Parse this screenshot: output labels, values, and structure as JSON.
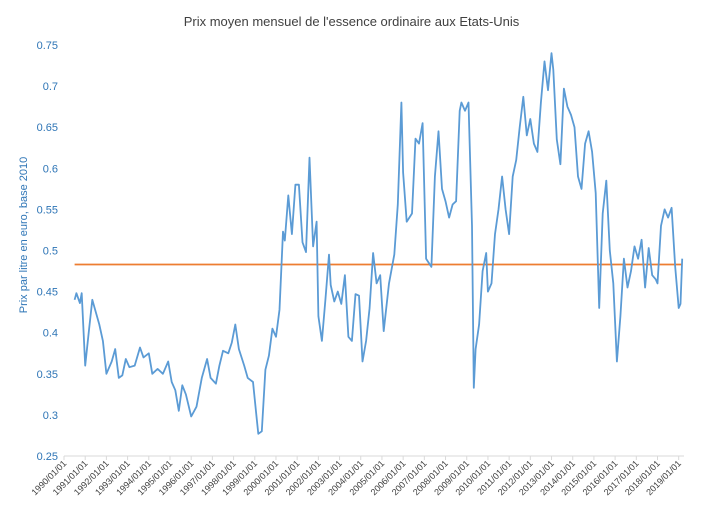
{
  "chart_data": {
    "type": "line",
    "title": "Prix moyen mensuel de l'essence ordinaire aux Etats-Unis",
    "xlabel": "",
    "ylabel": "Prix par litre en euro, base 2010",
    "ylim": [
      0.25,
      0.75
    ],
    "y_ticks": [
      "0.25",
      "0.3",
      "0.35",
      "0.4",
      "0.45",
      "0.5",
      "0.55",
      "0.6",
      "0.65",
      "0.7",
      "0.75"
    ],
    "x_ticks": [
      "1990/01/01",
      "1991/01/01",
      "1992/01/01",
      "1993/01/01",
      "1994/01/01",
      "1995/01/01",
      "1996/01/01",
      "1997/01/01",
      "1998/01/01",
      "1999/01/01",
      "2000/01/01",
      "2001/01/01",
      "2002/01/01",
      "2003/01/01",
      "2004/01/01",
      "2005/01/01",
      "2006/01/01",
      "2007/01/01",
      "2008/01/01",
      "2009/01/01",
      "2010/01/01",
      "2011/01/01",
      "2012/01/01",
      "2013/01/01",
      "2014/01/01",
      "2015/01/01",
      "2016/01/01",
      "2017/01/01",
      "2018/01/01",
      "2019/01/01"
    ],
    "grid": false,
    "legend": "none",
    "series": [
      {
        "color": "#5b9bd5",
        "points": [
          [
            "1990-07",
            0.44
          ],
          [
            "1990-08",
            0.448
          ],
          [
            "1990-10",
            0.436
          ],
          [
            "1990-11",
            0.448
          ],
          [
            "1991-01",
            0.36
          ],
          [
            "1991-03",
            0.4
          ],
          [
            "1991-05",
            0.44
          ],
          [
            "1991-07",
            0.425
          ],
          [
            "1991-09",
            0.41
          ],
          [
            "1991-11",
            0.39
          ],
          [
            "1992-01",
            0.35
          ],
          [
            "1992-04",
            0.365
          ],
          [
            "1992-06",
            0.38
          ],
          [
            "1992-08",
            0.345
          ],
          [
            "1992-10",
            0.348
          ],
          [
            "1992-12",
            0.368
          ],
          [
            "1993-02",
            0.358
          ],
          [
            "1993-05",
            0.36
          ],
          [
            "1993-08",
            0.382
          ],
          [
            "1993-10",
            0.37
          ],
          [
            "1994-01",
            0.375
          ],
          [
            "1994-03",
            0.35
          ],
          [
            "1994-06",
            0.356
          ],
          [
            "1994-09",
            0.35
          ],
          [
            "1994-12",
            0.365
          ],
          [
            "1995-02",
            0.34
          ],
          [
            "1995-04",
            0.33
          ],
          [
            "1995-06",
            0.305
          ],
          [
            "1995-08",
            0.336
          ],
          [
            "1995-10",
            0.325
          ],
          [
            "1996-01",
            0.298
          ],
          [
            "1996-04",
            0.31
          ],
          [
            "1996-07",
            0.345
          ],
          [
            "1996-10",
            0.368
          ],
          [
            "1996-12",
            0.345
          ],
          [
            "1997-03",
            0.338
          ],
          [
            "1997-05",
            0.36
          ],
          [
            "1997-07",
            0.378
          ],
          [
            "1997-10",
            0.375
          ],
          [
            "1997-12",
            0.388
          ],
          [
            "1998-02",
            0.41
          ],
          [
            "1998-04",
            0.38
          ],
          [
            "1998-07",
            0.36
          ],
          [
            "1998-09",
            0.345
          ],
          [
            "1998-12",
            0.34
          ],
          [
            "1999-02",
            0.298
          ],
          [
            "1999-03",
            0.277
          ],
          [
            "1999-05",
            0.28
          ],
          [
            "1999-07",
            0.355
          ],
          [
            "1999-09",
            0.372
          ],
          [
            "1999-11",
            0.405
          ],
          [
            "2000-01",
            0.395
          ],
          [
            "2000-03",
            0.428
          ],
          [
            "2000-05",
            0.523
          ],
          [
            "2000-06",
            0.512
          ],
          [
            "2000-08",
            0.567
          ],
          [
            "2000-10",
            0.52
          ],
          [
            "2000-12",
            0.58
          ],
          [
            "2001-02",
            0.58
          ],
          [
            "2001-04",
            0.51
          ],
          [
            "2001-06",
            0.498
          ],
          [
            "2001-08",
            0.613
          ],
          [
            "2001-10",
            0.505
          ],
          [
            "2001-12",
            0.535
          ],
          [
            "2002-01",
            0.42
          ],
          [
            "2002-03",
            0.39
          ],
          [
            "2002-05",
            0.44
          ],
          [
            "2002-07",
            0.495
          ],
          [
            "2002-08",
            0.458
          ],
          [
            "2002-10",
            0.438
          ],
          [
            "2002-12",
            0.45
          ],
          [
            "2003-02",
            0.435
          ],
          [
            "2003-04",
            0.47
          ],
          [
            "2003-06",
            0.395
          ],
          [
            "2003-08",
            0.39
          ],
          [
            "2003-10",
            0.447
          ],
          [
            "2003-12",
            0.445
          ],
          [
            "2004-02",
            0.365
          ],
          [
            "2004-04",
            0.39
          ],
          [
            "2004-06",
            0.43
          ],
          [
            "2004-08",
            0.497
          ],
          [
            "2004-10",
            0.46
          ],
          [
            "2004-12",
            0.47
          ],
          [
            "2005-02",
            0.402
          ],
          [
            "2005-05",
            0.46
          ],
          [
            "2005-08",
            0.495
          ],
          [
            "2005-10",
            0.556
          ],
          [
            "2005-12",
            0.68
          ],
          [
            "2006-01",
            0.595
          ],
          [
            "2006-03",
            0.535
          ],
          [
            "2006-06",
            0.545
          ],
          [
            "2006-08",
            0.636
          ],
          [
            "2006-10",
            0.63
          ],
          [
            "2006-12",
            0.655
          ],
          [
            "2007-02",
            0.49
          ],
          [
            "2007-05",
            0.48
          ],
          [
            "2007-07",
            0.59
          ],
          [
            "2007-09",
            0.645
          ],
          [
            "2007-11",
            0.575
          ],
          [
            "2008-01",
            0.56
          ],
          [
            "2008-03",
            0.54
          ],
          [
            "2008-05",
            0.556
          ],
          [
            "2008-07",
            0.56
          ],
          [
            "2008-09",
            0.67
          ],
          [
            "2008-10",
            0.68
          ],
          [
            "2008-12",
            0.67
          ],
          [
            "2009-02",
            0.68
          ],
          [
            "2009-04",
            0.53
          ],
          [
            "2009-05",
            0.333
          ],
          [
            "2009-06",
            0.38
          ],
          [
            "2009-08",
            0.41
          ],
          [
            "2009-10",
            0.475
          ],
          [
            "2009-12",
            0.497
          ],
          [
            "2010-01",
            0.45
          ],
          [
            "2010-03",
            0.46
          ],
          [
            "2010-05",
            0.52
          ],
          [
            "2010-07",
            0.55
          ],
          [
            "2010-09",
            0.59
          ],
          [
            "2010-11",
            0.55
          ],
          [
            "2011-01",
            0.52
          ],
          [
            "2011-03",
            0.59
          ],
          [
            "2011-05",
            0.61
          ],
          [
            "2011-07",
            0.65
          ],
          [
            "2011-09",
            0.687
          ],
          [
            "2011-11",
            0.64
          ],
          [
            "2012-01",
            0.66
          ],
          [
            "2012-03",
            0.63
          ],
          [
            "2012-05",
            0.62
          ],
          [
            "2012-07",
            0.68
          ],
          [
            "2012-09",
            0.73
          ],
          [
            "2012-11",
            0.695
          ],
          [
            "2013-01",
            0.74
          ],
          [
            "2013-02",
            0.72
          ],
          [
            "2013-04",
            0.635
          ],
          [
            "2013-06",
            0.605
          ],
          [
            "2013-08",
            0.697
          ],
          [
            "2013-10",
            0.675
          ],
          [
            "2013-12",
            0.665
          ],
          [
            "2014-02",
            0.65
          ],
          [
            "2014-04",
            0.59
          ],
          [
            "2014-06",
            0.575
          ],
          [
            "2014-08",
            0.63
          ],
          [
            "2014-10",
            0.645
          ],
          [
            "2014-12",
            0.62
          ],
          [
            "2015-02",
            0.57
          ],
          [
            "2015-04",
            0.43
          ],
          [
            "2015-06",
            0.545
          ],
          [
            "2015-08",
            0.585
          ],
          [
            "2015-10",
            0.5
          ],
          [
            "2015-12",
            0.46
          ],
          [
            "2016-02",
            0.365
          ],
          [
            "2016-04",
            0.42
          ],
          [
            "2016-06",
            0.49
          ],
          [
            "2016-08",
            0.455
          ],
          [
            "2016-10",
            0.475
          ],
          [
            "2016-12",
            0.505
          ],
          [
            "2017-02",
            0.49
          ],
          [
            "2017-04",
            0.513
          ],
          [
            "2017-06",
            0.455
          ],
          [
            "2017-08",
            0.503
          ],
          [
            "2017-10",
            0.47
          ],
          [
            "2017-12",
            0.465
          ],
          [
            "2018-01",
            0.46
          ],
          [
            "2018-03",
            0.53
          ],
          [
            "2018-05",
            0.55
          ],
          [
            "2018-07",
            0.54
          ],
          [
            "2018-09",
            0.552
          ],
          [
            "2018-11",
            0.48
          ],
          [
            "2019-01",
            0.43
          ],
          [
            "2019-02",
            0.435
          ],
          [
            "2019-03",
            0.49
          ]
        ]
      },
      {
        "color": "#ed7d31",
        "points": [
          [
            "1990-07",
            0.483
          ],
          [
            "2019-03",
            0.483
          ]
        ]
      }
    ]
  }
}
